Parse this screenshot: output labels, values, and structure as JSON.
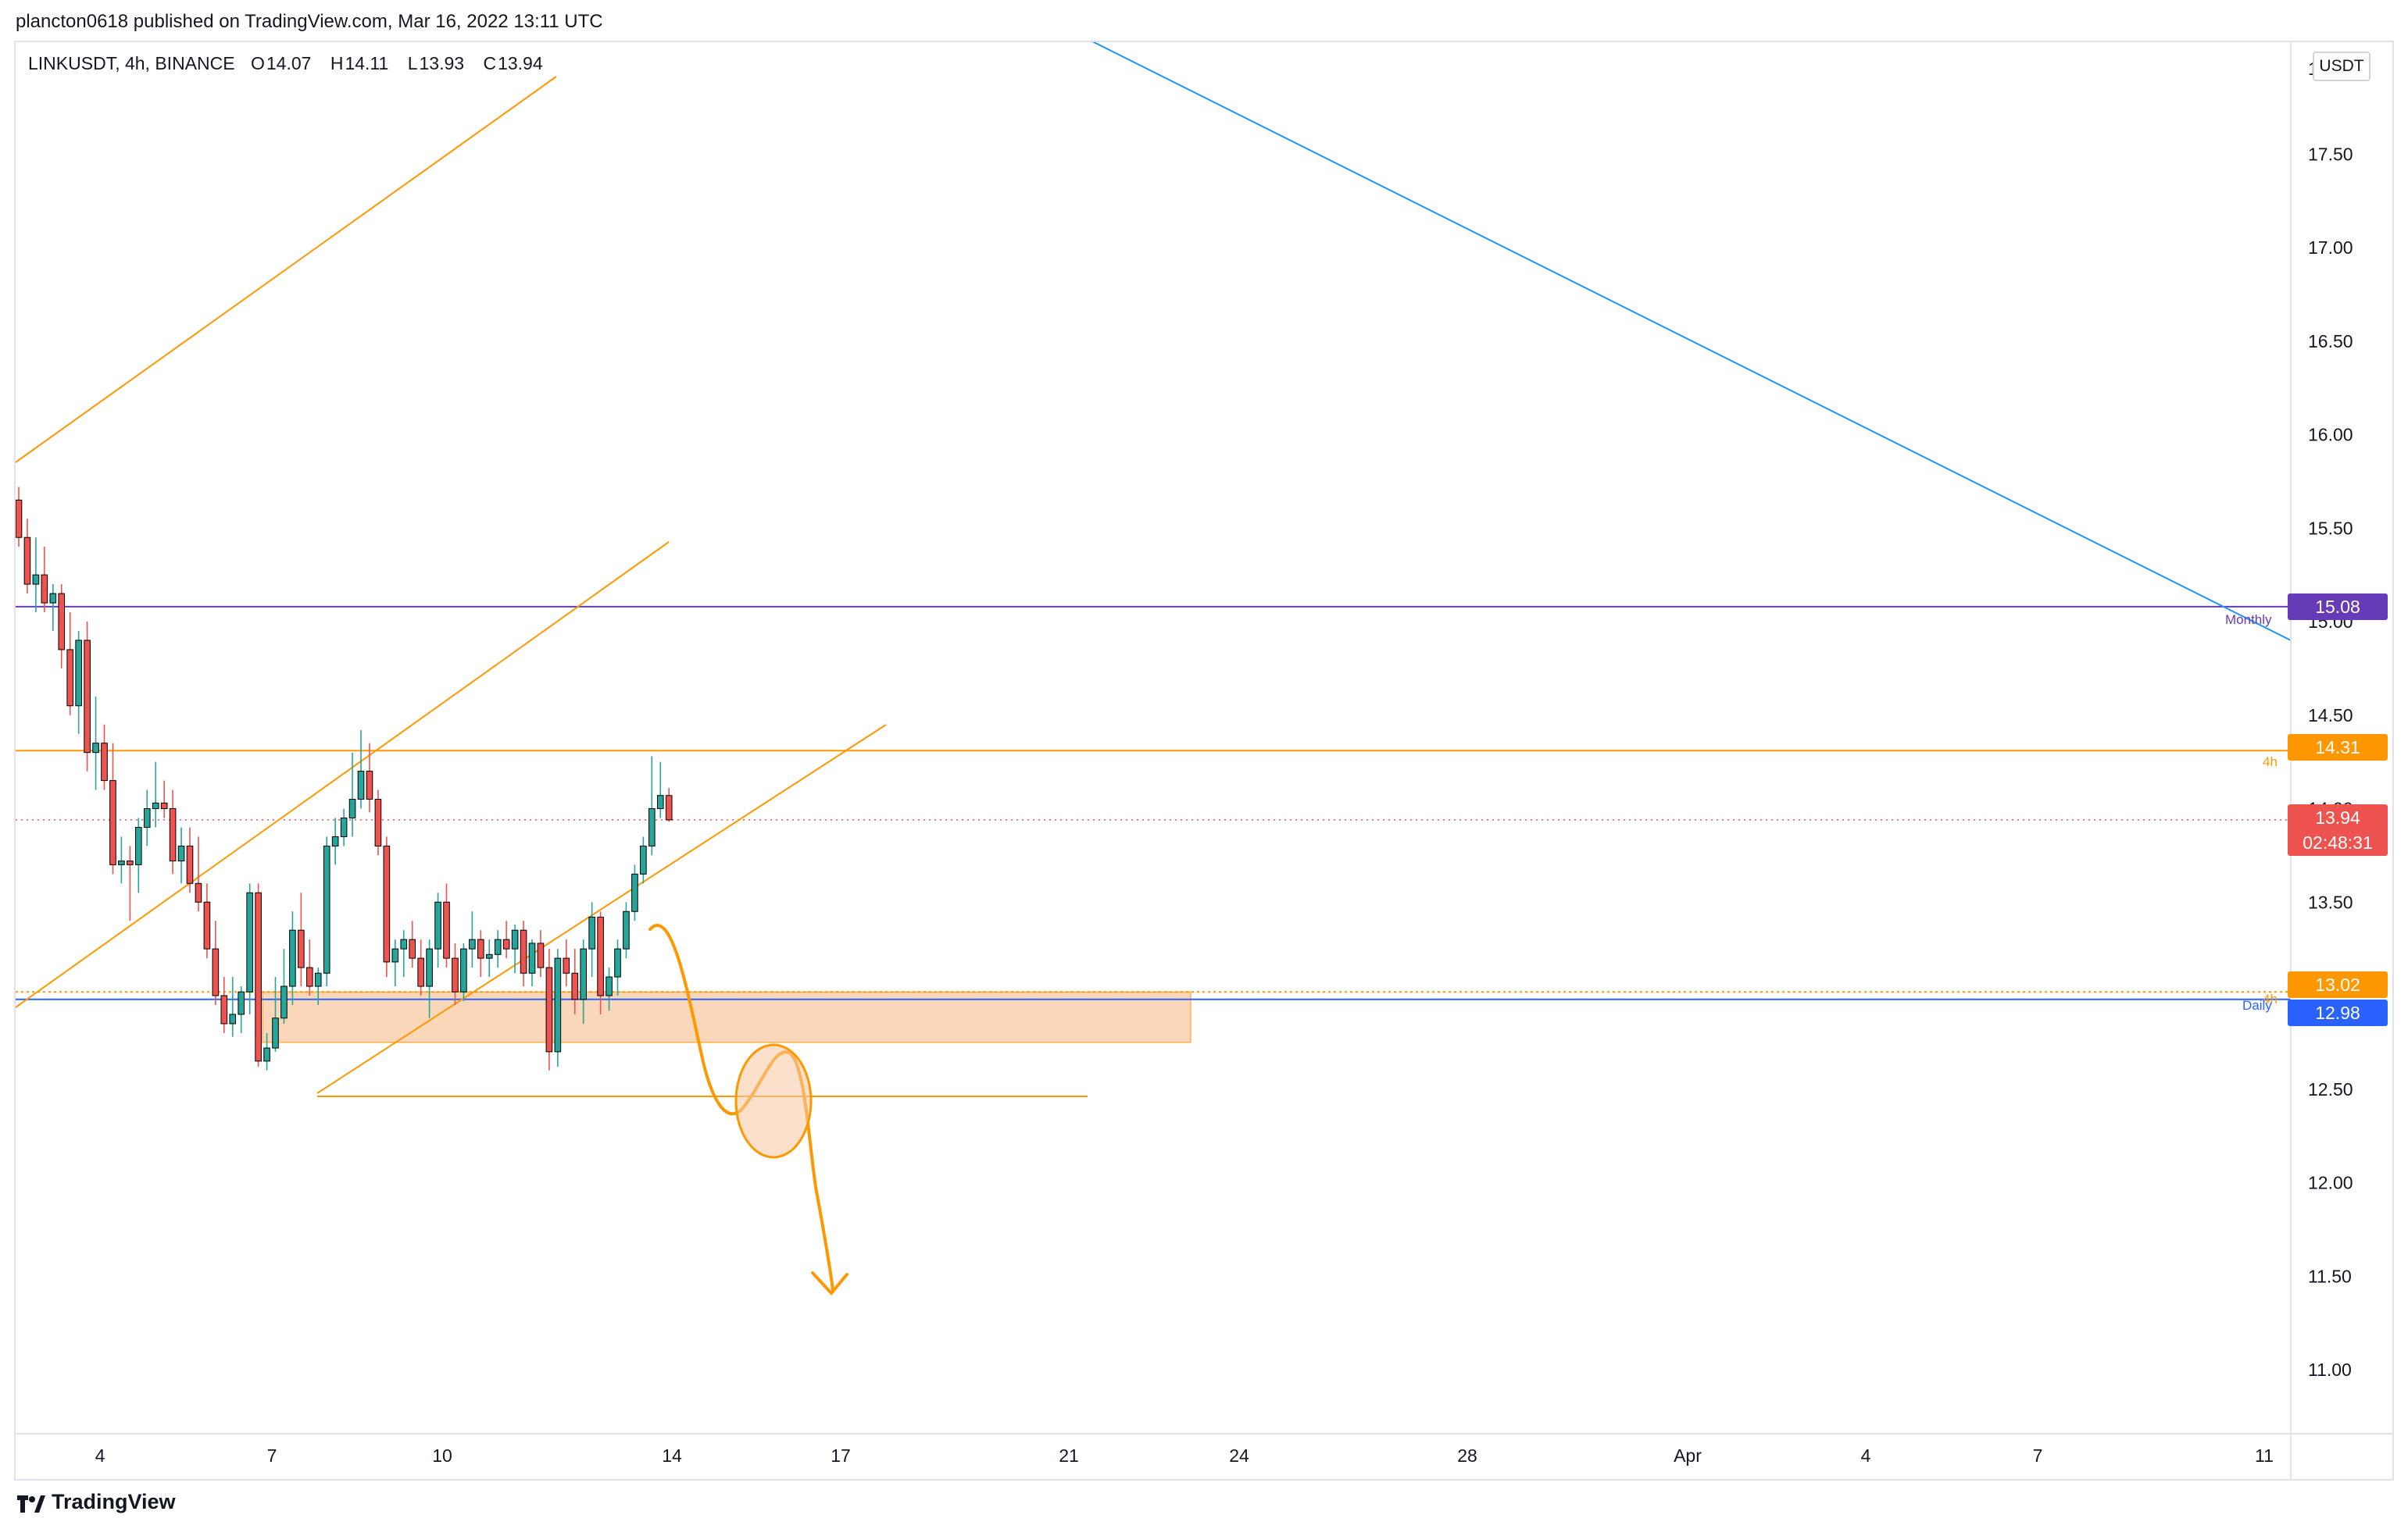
{
  "header": {
    "publisher_line": "plancton0618 published on TradingView.com, Mar 16, 2022 13:11 UTC"
  },
  "legend": {
    "symbol": "LINKUSDT, 4h, BINANCE",
    "open_label": "O",
    "open": "14.07",
    "high_label": "H",
    "high": "14.11",
    "low_label": "L",
    "low": "13.93",
    "close_label": "C",
    "close": "13.94"
  },
  "price_axis": {
    "currency": "USDT",
    "top_partial_label": "1",
    "ticks": [
      "17.50",
      "17.00",
      "16.50",
      "16.00",
      "15.50",
      "15.00",
      "14.50",
      "14.00",
      "13.50",
      "12.50",
      "12.00",
      "11.50",
      "11.00"
    ]
  },
  "time_axis": {
    "ticks": [
      "4",
      "7",
      "10",
      "14",
      "17",
      "21",
      "24",
      "28",
      "Apr",
      "4",
      "7",
      "11"
    ]
  },
  "levels": {
    "monthly": {
      "label": "Monthly",
      "price": "15.08",
      "color": "#673ab7"
    },
    "h4": {
      "label": "4h",
      "price": "14.31",
      "color": "#ff9800"
    },
    "current": {
      "price": "13.94",
      "countdown": "02:48:31",
      "color": "#ef5350"
    },
    "dotted": {
      "label": "4h",
      "price": "13.02",
      "color": "#ff9800"
    },
    "daily": {
      "label": "Daily",
      "price": "12.98",
      "color": "#2962ff"
    }
  },
  "colors": {
    "up": "#26a69a",
    "down": "#ef5350",
    "trendline_orange": "#ff9800",
    "trendline_blue": "#2196f3",
    "zone_fill": "#f7c9a0"
  },
  "footer": {
    "brand": "TradingView",
    "logo_icon": "tradingview-logo-icon"
  },
  "chart_data": {
    "type": "candlestick",
    "symbol": "LINKUSDT",
    "interval": "4h",
    "exchange": "BINANCE",
    "ylim": [
      10.6,
      18.0
    ],
    "yticks": [
      11.0,
      11.5,
      12.0,
      12.5,
      13.0,
      13.5,
      14.0,
      14.5,
      15.0,
      15.5,
      16.0,
      16.5,
      17.0,
      17.5
    ],
    "candles": [
      {
        "o": 15.65,
        "h": 15.72,
        "l": 15.4,
        "c": 15.45
      },
      {
        "o": 15.45,
        "h": 15.55,
        "l": 15.15,
        "c": 15.2
      },
      {
        "o": 15.2,
        "h": 15.45,
        "l": 15.05,
        "c": 15.25
      },
      {
        "o": 15.25,
        "h": 15.4,
        "l": 15.05,
        "c": 15.1
      },
      {
        "o": 15.1,
        "h": 15.2,
        "l": 14.95,
        "c": 15.15
      },
      {
        "o": 15.15,
        "h": 15.2,
        "l": 14.75,
        "c": 14.85
      },
      {
        "o": 14.85,
        "h": 15.05,
        "l": 14.5,
        "c": 14.55
      },
      {
        "o": 14.55,
        "h": 14.95,
        "l": 14.4,
        "c": 14.9
      },
      {
        "o": 14.9,
        "h": 15.0,
        "l": 14.2,
        "c": 14.3
      },
      {
        "o": 14.3,
        "h": 14.6,
        "l": 14.1,
        "c": 14.35
      },
      {
        "o": 14.35,
        "h": 14.45,
        "l": 14.1,
        "c": 14.15
      },
      {
        "o": 14.15,
        "h": 14.35,
        "l": 13.65,
        "c": 13.7
      },
      {
        "o": 13.7,
        "h": 13.85,
        "l": 13.6,
        "c": 13.72
      },
      {
        "o": 13.72,
        "h": 13.8,
        "l": 13.4,
        "c": 13.7
      },
      {
        "o": 13.7,
        "h": 13.95,
        "l": 13.55,
        "c": 13.9
      },
      {
        "o": 13.9,
        "h": 14.1,
        "l": 13.8,
        "c": 14.0
      },
      {
        "o": 14.0,
        "h": 14.25,
        "l": 13.9,
        "c": 14.03
      },
      {
        "o": 14.03,
        "h": 14.15,
        "l": 13.95,
        "c": 14.0
      },
      {
        "o": 14.0,
        "h": 14.1,
        "l": 13.65,
        "c": 13.72
      },
      {
        "o": 13.72,
        "h": 13.9,
        "l": 13.6,
        "c": 13.8
      },
      {
        "o": 13.8,
        "h": 13.9,
        "l": 13.55,
        "c": 13.6
      },
      {
        "o": 13.6,
        "h": 13.85,
        "l": 13.45,
        "c": 13.5
      },
      {
        "o": 13.5,
        "h": 13.6,
        "l": 13.2,
        "c": 13.25
      },
      {
        "o": 13.25,
        "h": 13.4,
        "l": 12.95,
        "c": 13.0
      },
      {
        "o": 13.0,
        "h": 13.1,
        "l": 12.8,
        "c": 12.85
      },
      {
        "o": 12.85,
        "h": 13.1,
        "l": 12.78,
        "c": 12.9
      },
      {
        "o": 12.9,
        "h": 13.05,
        "l": 12.8,
        "c": 13.02
      },
      {
        "o": 13.02,
        "h": 13.6,
        "l": 12.9,
        "c": 13.55
      },
      {
        "o": 13.55,
        "h": 13.6,
        "l": 12.62,
        "c": 12.65
      },
      {
        "o": 12.65,
        "h": 12.8,
        "l": 12.6,
        "c": 12.72
      },
      {
        "o": 12.72,
        "h": 13.1,
        "l": 12.7,
        "c": 12.88
      },
      {
        "o": 12.88,
        "h": 13.25,
        "l": 12.85,
        "c": 13.05
      },
      {
        "o": 13.05,
        "h": 13.45,
        "l": 12.95,
        "c": 13.35
      },
      {
        "o": 13.35,
        "h": 13.55,
        "l": 13.05,
        "c": 13.15
      },
      {
        "o": 13.15,
        "h": 13.3,
        "l": 13.0,
        "c": 13.05
      },
      {
        "o": 13.05,
        "h": 13.15,
        "l": 12.95,
        "c": 13.12
      },
      {
        "o": 13.12,
        "h": 13.85,
        "l": 13.05,
        "c": 13.8
      },
      {
        "o": 13.8,
        "h": 13.95,
        "l": 13.7,
        "c": 13.85
      },
      {
        "o": 13.85,
        "h": 14.0,
        "l": 13.8,
        "c": 13.95
      },
      {
        "o": 13.95,
        "h": 14.3,
        "l": 13.85,
        "c": 14.05
      },
      {
        "o": 14.05,
        "h": 14.42,
        "l": 14.0,
        "c": 14.2
      },
      {
        "o": 14.2,
        "h": 14.35,
        "l": 13.98,
        "c": 14.05
      },
      {
        "o": 14.05,
        "h": 14.1,
        "l": 13.75,
        "c": 13.8
      },
      {
        "o": 13.8,
        "h": 13.85,
        "l": 13.1,
        "c": 13.18
      },
      {
        "o": 13.18,
        "h": 13.3,
        "l": 13.05,
        "c": 13.25
      },
      {
        "o": 13.25,
        "h": 13.35,
        "l": 13.1,
        "c": 13.3
      },
      {
        "o": 13.3,
        "h": 13.4,
        "l": 13.15,
        "c": 13.2
      },
      {
        "o": 13.2,
        "h": 13.3,
        "l": 13.0,
        "c": 13.05
      },
      {
        "o": 13.05,
        "h": 13.3,
        "l": 12.88,
        "c": 13.25
      },
      {
        "o": 13.25,
        "h": 13.55,
        "l": 13.15,
        "c": 13.5
      },
      {
        "o": 13.5,
        "h": 13.6,
        "l": 13.15,
        "c": 13.2
      },
      {
        "o": 13.2,
        "h": 13.28,
        "l": 12.95,
        "c": 13.02
      },
      {
        "o": 13.02,
        "h": 13.28,
        "l": 12.97,
        "c": 13.25
      },
      {
        "o": 13.25,
        "h": 13.45,
        "l": 13.15,
        "c": 13.3
      },
      {
        "o": 13.3,
        "h": 13.35,
        "l": 13.1,
        "c": 13.2
      },
      {
        "o": 13.2,
        "h": 13.3,
        "l": 13.1,
        "c": 13.22
      },
      {
        "o": 13.22,
        "h": 13.35,
        "l": 13.15,
        "c": 13.3
      },
      {
        "o": 13.3,
        "h": 13.4,
        "l": 13.2,
        "c": 13.25
      },
      {
        "o": 13.25,
        "h": 13.38,
        "l": 13.12,
        "c": 13.35
      },
      {
        "o": 13.35,
        "h": 13.4,
        "l": 13.05,
        "c": 13.12
      },
      {
        "o": 13.12,
        "h": 13.3,
        "l": 13.05,
        "c": 13.28
      },
      {
        "o": 13.28,
        "h": 13.35,
        "l": 13.1,
        "c": 13.15
      },
      {
        "o": 13.15,
        "h": 13.25,
        "l": 12.6,
        "c": 12.7
      },
      {
        "o": 12.7,
        "h": 13.25,
        "l": 12.62,
        "c": 13.2
      },
      {
        "o": 13.2,
        "h": 13.3,
        "l": 13.05,
        "c": 13.12
      },
      {
        "o": 13.12,
        "h": 13.25,
        "l": 12.9,
        "c": 12.98
      },
      {
        "o": 12.98,
        "h": 13.3,
        "l": 12.85,
        "c": 13.25
      },
      {
        "o": 13.25,
        "h": 13.5,
        "l": 13.1,
        "c": 13.42
      },
      {
        "o": 13.42,
        "h": 13.45,
        "l": 12.9,
        "c": 13.0
      },
      {
        "o": 13.0,
        "h": 13.15,
        "l": 12.92,
        "c": 13.1
      },
      {
        "o": 13.1,
        "h": 13.3,
        "l": 13.0,
        "c": 13.25
      },
      {
        "o": 13.25,
        "h": 13.5,
        "l": 13.2,
        "c": 13.45
      },
      {
        "o": 13.45,
        "h": 13.7,
        "l": 13.4,
        "c": 13.65
      },
      {
        "o": 13.65,
        "h": 13.85,
        "l": 13.6,
        "c": 13.8
      },
      {
        "o": 13.8,
        "h": 14.28,
        "l": 13.75,
        "c": 14.0
      },
      {
        "o": 14.0,
        "h": 14.25,
        "l": 13.95,
        "c": 14.07
      },
      {
        "o": 14.07,
        "h": 14.11,
        "l": 13.93,
        "c": 13.94
      }
    ],
    "horizontal_levels": [
      {
        "label": "Monthly",
        "price": 15.08
      },
      {
        "label": "4h",
        "price": 14.31
      },
      {
        "label": "4h",
        "price": 13.02
      },
      {
        "label": "Daily",
        "price": 12.98
      }
    ],
    "current_price": 13.94,
    "countdown": "02:48:31",
    "x_tick_labels": [
      "4",
      "7",
      "10",
      "14",
      "17",
      "21",
      "24",
      "28",
      "Apr",
      "4",
      "7",
      "11"
    ]
  }
}
